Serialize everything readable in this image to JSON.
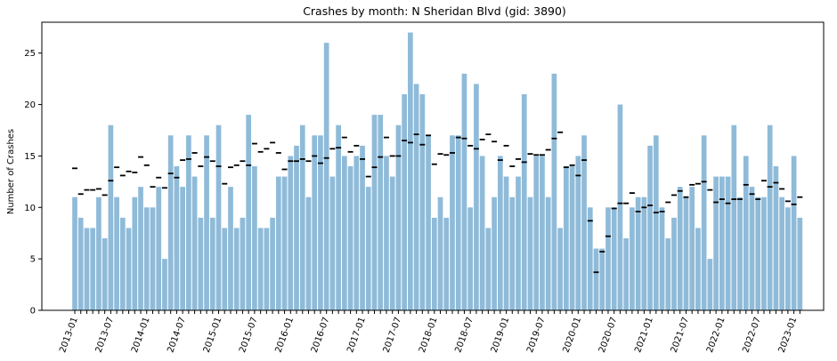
{
  "chart_data": {
    "type": "bar",
    "title": "Crashes by month: N Sheridan Blvd (gid: 3890)",
    "xlabel": "",
    "ylabel": "Number of Crashes",
    "ylim": [
      0,
      28
    ],
    "yticks": [
      0,
      5,
      10,
      15,
      20,
      25
    ],
    "grid": false,
    "categories": [
      "2013-01",
      "2013-02",
      "2013-03",
      "2013-04",
      "2013-05",
      "2013-06",
      "2013-07",
      "2013-08",
      "2013-09",
      "2013-10",
      "2013-11",
      "2013-12",
      "2014-01",
      "2014-02",
      "2014-03",
      "2014-04",
      "2014-05",
      "2014-06",
      "2014-07",
      "2014-08",
      "2014-09",
      "2014-10",
      "2014-11",
      "2014-12",
      "2015-01",
      "2015-02",
      "2015-03",
      "2015-04",
      "2015-05",
      "2015-06",
      "2015-07",
      "2015-08",
      "2015-09",
      "2015-10",
      "2015-11",
      "2015-12",
      "2016-01",
      "2016-02",
      "2016-03",
      "2016-04",
      "2016-05",
      "2016-06",
      "2016-07",
      "2016-08",
      "2016-09",
      "2016-10",
      "2016-11",
      "2016-12",
      "2017-01",
      "2017-02",
      "2017-03",
      "2017-04",
      "2017-05",
      "2017-06",
      "2017-07",
      "2017-08",
      "2017-09",
      "2017-10",
      "2017-11",
      "2017-12",
      "2018-01",
      "2018-02",
      "2018-03",
      "2018-04",
      "2018-05",
      "2018-06",
      "2018-07",
      "2018-08",
      "2018-09",
      "2018-10",
      "2018-11",
      "2018-12",
      "2019-01",
      "2019-02",
      "2019-03",
      "2019-04",
      "2019-05",
      "2019-06",
      "2019-07",
      "2019-08",
      "2019-09",
      "2019-10",
      "2019-11",
      "2019-12",
      "2020-01",
      "2020-02",
      "2020-03",
      "2020-04",
      "2020-05",
      "2020-06",
      "2020-07",
      "2020-08",
      "2020-09",
      "2020-10",
      "2020-11",
      "2020-12",
      "2021-01",
      "2021-02",
      "2021-03",
      "2021-04",
      "2021-05",
      "2021-06",
      "2021-07",
      "2021-08",
      "2021-09",
      "2021-10",
      "2021-11",
      "2021-12",
      "2022-01",
      "2022-02",
      "2022-03",
      "2022-04",
      "2022-05",
      "2022-06",
      "2022-07",
      "2022-08",
      "2022-09",
      "2022-10",
      "2022-11",
      "2022-12",
      "2023-01",
      "2023-02"
    ],
    "x_tick_labels": [
      "2013-01",
      "2013-07",
      "2014-01",
      "2014-07",
      "2015-01",
      "2015-07",
      "2016-01",
      "2016-07",
      "2017-01",
      "2017-07",
      "2018-01",
      "2018-07",
      "2019-01",
      "2019-07",
      "2020-01",
      "2020-07",
      "2021-01",
      "2021-07",
      "2022-01",
      "2022-07",
      "2023-01"
    ],
    "series": [
      {
        "kind": "bar",
        "color": "#8fbbd9",
        "values": [
          11,
          9,
          8,
          8,
          11,
          7,
          18,
          11,
          9,
          8,
          11,
          12,
          10,
          10,
          12,
          5,
          17,
          14,
          12,
          17,
          13,
          9,
          17,
          9,
          18,
          8,
          12,
          8,
          9,
          19,
          14,
          8,
          8,
          9,
          13,
          13,
          15,
          16,
          18,
          11,
          17,
          17,
          26,
          13,
          18,
          15,
          14,
          15,
          16,
          12,
          19,
          19,
          15,
          13,
          18,
          21,
          27,
          22,
          21,
          17,
          9,
          11,
          9,
          17,
          17,
          23,
          10,
          22,
          15,
          8,
          11,
          15,
          13,
          11,
          13,
          21,
          11,
          15,
          15,
          11,
          23,
          8,
          14,
          14,
          15,
          17,
          10,
          6,
          6,
          10,
          10,
          20,
          7,
          10,
          11,
          11,
          16,
          17,
          10,
          7,
          9,
          12,
          11,
          12,
          8,
          17,
          5,
          13,
          13,
          13,
          18,
          11,
          15,
          12,
          11,
          11,
          18,
          14,
          11,
          10,
          15,
          9
        ]
      },
      {
        "kind": "marker",
        "color": "#000000",
        "values": [
          13.8,
          11.3,
          11.7,
          11.7,
          11.8,
          11.2,
          12.6,
          13.9,
          13.1,
          13.5,
          13.4,
          14.9,
          14.1,
          12.0,
          12.9,
          11.9,
          13.3,
          12.9,
          14.6,
          14.7,
          15.3,
          14.0,
          14.9,
          14.5,
          14.0,
          12.3,
          13.9,
          14.1,
          14.5,
          14.1,
          16.2,
          15.4,
          15.7,
          16.3,
          15.3,
          13.7,
          14.5,
          14.5,
          14.7,
          14.5,
          15.0,
          14.3,
          14.8,
          15.7,
          15.8,
          16.8,
          15.4,
          16.0,
          14.7,
          13.0,
          13.9,
          14.9,
          16.8,
          15.0,
          15.0,
          16.5,
          16.3,
          17.1,
          16.1,
          17.0,
          14.2,
          15.2,
          15.1,
          15.3,
          16.8,
          16.7,
          16.0,
          15.7,
          16.6,
          17.1,
          16.4,
          14.6,
          16.0,
          14.0,
          14.7,
          14.4,
          15.2,
          15.1,
          15.1,
          15.6,
          16.7,
          17.3,
          13.9,
          14.1,
          13.1,
          14.6,
          8.7,
          3.7,
          5.7,
          7.2,
          9.9,
          10.4,
          10.4,
          11.4,
          9.6,
          10.0,
          10.2,
          9.5,
          9.6,
          10.5,
          11.2,
          11.6,
          11.0,
          12.2,
          12.3,
          12.5,
          11.7,
          10.5,
          10.8,
          10.4,
          10.8,
          10.8,
          12.2,
          11.3,
          10.8,
          12.6,
          12.0,
          12.4,
          11.8,
          10.6,
          10.3,
          11.0
        ]
      }
    ]
  }
}
